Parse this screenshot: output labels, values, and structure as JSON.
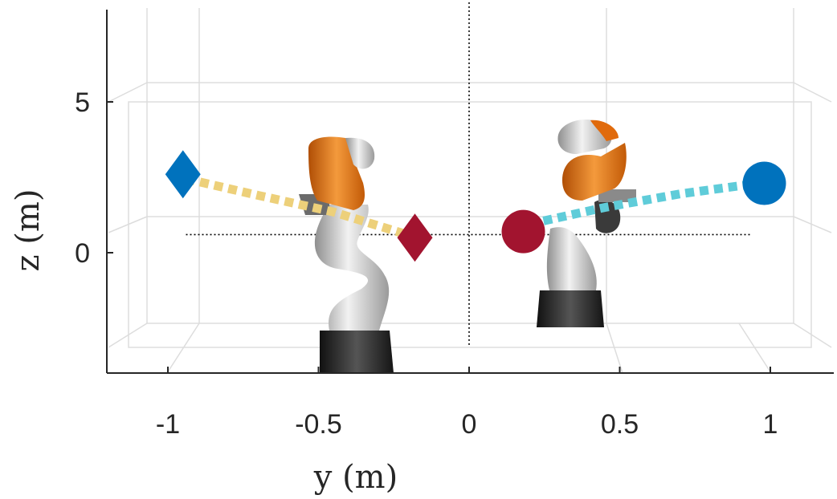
{
  "chart_data": {
    "type": "scatter",
    "xlabel": "y (m)",
    "ylabel": "z (m)",
    "xlim": [
      -1.2,
      1.2
    ],
    "ylim": [
      -4,
      8
    ],
    "xticks": [
      -1,
      -0.5,
      0,
      0.5,
      1
    ],
    "xtick_labels": [
      "-1",
      "-0.5",
      "0",
      "0.5",
      "1"
    ],
    "yticks": [
      0,
      5
    ],
    "ytick_labels": [
      "0",
      "5"
    ],
    "grid": true,
    "reference_lines": {
      "horizontal_z": 0.6,
      "horizontal_y_range": [
        -0.94,
        0.94
      ],
      "vertical_y": 0,
      "vertical_z_range": [
        -3.1,
        8.3
      ],
      "color": "#000000"
    },
    "series": [
      {
        "marker": "diamond",
        "color": "#0072BD",
        "points": [
          {
            "x": -0.95,
            "y": 2.6
          }
        ]
      },
      {
        "marker": "diamond",
        "color": "#A2142F",
        "points": [
          {
            "x": -0.18,
            "y": 0.5
          }
        ]
      },
      {
        "marker": "circle",
        "color": "#A2142F",
        "points": [
          {
            "x": 0.18,
            "y": 0.7
          }
        ]
      },
      {
        "marker": "circle",
        "color": "#0072BD",
        "points": [
          {
            "x": 0.98,
            "y": 2.3
          }
        ]
      },
      {
        "marker": "dashed-path",
        "color": "#EDD07A",
        "points": [
          {
            "x": -0.94,
            "y": 2.45
          },
          {
            "x": -0.7,
            "y": 1.9
          },
          {
            "x": -0.45,
            "y": 1.35
          },
          {
            "x": -0.19,
            "y": 0.55
          }
        ]
      },
      {
        "marker": "dashed-path",
        "color": "#5FCCD9",
        "points": [
          {
            "x": 0.2,
            "y": 0.95
          },
          {
            "x": 0.45,
            "y": 1.5
          },
          {
            "x": 0.7,
            "y": 1.95
          },
          {
            "x": 0.96,
            "y": 2.3
          }
        ]
      }
    ],
    "robots": [
      {
        "x": -0.43,
        "pose": "upright-curved"
      },
      {
        "x": 0.42,
        "pose": "folded"
      }
    ]
  },
  "colors": {
    "axis": "#262626",
    "grid": "#dddddd",
    "robot_orange": "#e06a0c",
    "robot_gray": "#bdbdbd",
    "robot_base": "#222222"
  }
}
